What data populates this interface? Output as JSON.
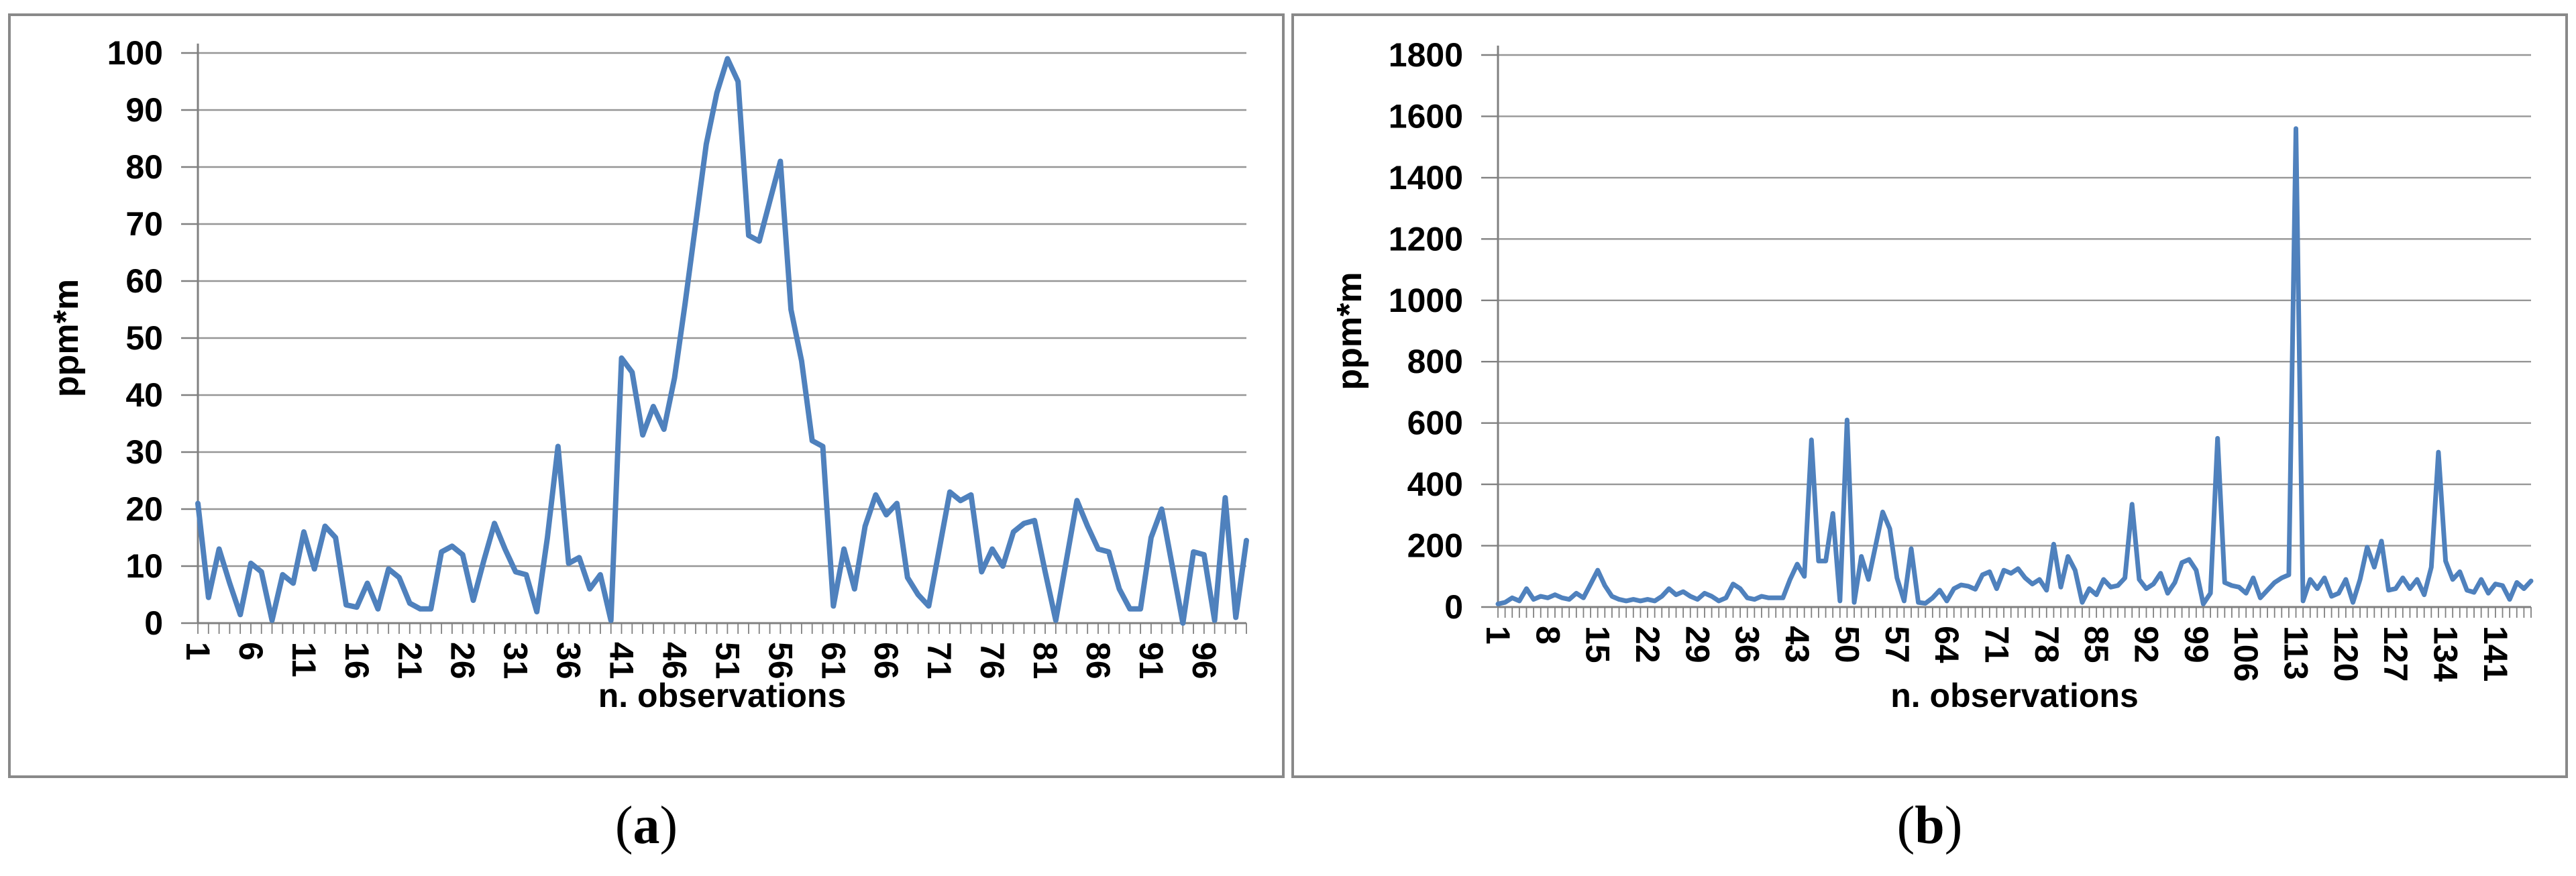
{
  "style": {
    "line_color": "#4F81BD",
    "grid_color": "#969696",
    "axis_color": "#808080",
    "panel_border_color": "#898989",
    "text_color": "#000000",
    "background": "#ffffff"
  },
  "chart_data": [
    {
      "type": "line",
      "title": "",
      "xlabel": "n. observations",
      "ylabel": "ppm*m",
      "legend": "none",
      "grid": "horizontal",
      "ylim": [
        0,
        100
      ],
      "y_tick_interval": 10,
      "y_ticks": [
        0,
        10,
        20,
        30,
        40,
        50,
        60,
        70,
        80,
        90,
        100
      ],
      "x_start": 1,
      "x_tick_interval": 5,
      "x_tick_labels": [
        1,
        6,
        11,
        16,
        21,
        26,
        31,
        36,
        41,
        46,
        51,
        56,
        61,
        66,
        71,
        76,
        81,
        86,
        91,
        96
      ],
      "caption": {
        "pre": "(",
        "letter": "a",
        "post": ")"
      },
      "values": [
        21,
        4.5,
        13,
        7,
        1.5,
        10.5,
        9,
        0.5,
        8.5,
        7,
        16,
        9.5,
        17,
        15,
        3.2,
        2.8,
        7,
        2.5,
        9.5,
        8,
        3.5,
        2.5,
        2.5,
        12.5,
        13.5,
        12,
        4,
        11,
        17.5,
        13,
        9,
        8.5,
        2,
        15,
        31,
        10.5,
        11.5,
        6,
        8.5,
        0.5,
        46.5,
        44,
        33,
        38,
        34,
        43,
        56,
        70,
        84,
        93,
        99,
        95,
        68,
        67,
        74,
        81,
        55,
        46,
        32,
        31,
        3,
        13,
        6,
        17,
        22.5,
        19,
        21,
        8,
        5,
        3,
        13,
        23,
        21.5,
        22.5,
        9,
        13,
        10,
        16,
        17.5,
        18,
        9,
        0.5,
        11,
        21.5,
        17,
        13,
        12.5,
        6,
        2.5,
        2.5,
        15,
        20,
        10,
        0,
        12.5,
        12,
        0.5,
        22,
        1,
        14.5
      ]
    },
    {
      "type": "line",
      "title": "",
      "xlabel": "n. observations",
      "ylabel": "ppm*m",
      "legend": "none",
      "grid": "horizontal",
      "ylim": [
        0,
        1800
      ],
      "y_tick_interval": 200,
      "y_ticks": [
        0,
        200,
        400,
        600,
        800,
        1000,
        1200,
        1400,
        1600,
        1800
      ],
      "x_start": 1,
      "x_tick_interval": 7,
      "x_tick_labels": [
        1,
        8,
        15,
        22,
        29,
        36,
        43,
        50,
        57,
        64,
        71,
        78,
        85,
        92,
        99,
        106,
        113,
        120,
        127,
        134,
        141
      ],
      "caption": {
        "pre": "(",
        "letter": "b",
        "post": ")"
      },
      "values": [
        10,
        15,
        30,
        20,
        60,
        25,
        35,
        30,
        40,
        30,
        25,
        45,
        30,
        75,
        120,
        70,
        35,
        25,
        20,
        25,
        20,
        25,
        20,
        35,
        60,
        40,
        50,
        35,
        25,
        45,
        35,
        20,
        30,
        75,
        60,
        30,
        25,
        35,
        30,
        30,
        30,
        90,
        140,
        100,
        545,
        150,
        150,
        305,
        20,
        610,
        15,
        165,
        90,
        200,
        310,
        255,
        95,
        20,
        190,
        15,
        12,
        30,
        55,
        20,
        60,
        72,
        68,
        58,
        105,
        115,
        60,
        120,
        110,
        125,
        95,
        75,
        90,
        55,
        205,
        65,
        165,
        120,
        15,
        60,
        40,
        90,
        65,
        70,
        95,
        335,
        90,
        60,
        75,
        110,
        45,
        80,
        145,
        155,
        120,
        10,
        45,
        550,
        80,
        70,
        65,
        45,
        95,
        30,
        55,
        80,
        95,
        105,
        1560,
        20,
        90,
        60,
        95,
        35,
        45,
        90,
        15,
        90,
        195,
        130,
        215,
        55,
        60,
        95,
        60,
        90,
        40,
        130,
        505,
        150,
        90,
        115,
        55,
        48,
        90,
        45,
        75,
        70,
        25,
        80,
        60,
        85
      ]
    }
  ]
}
